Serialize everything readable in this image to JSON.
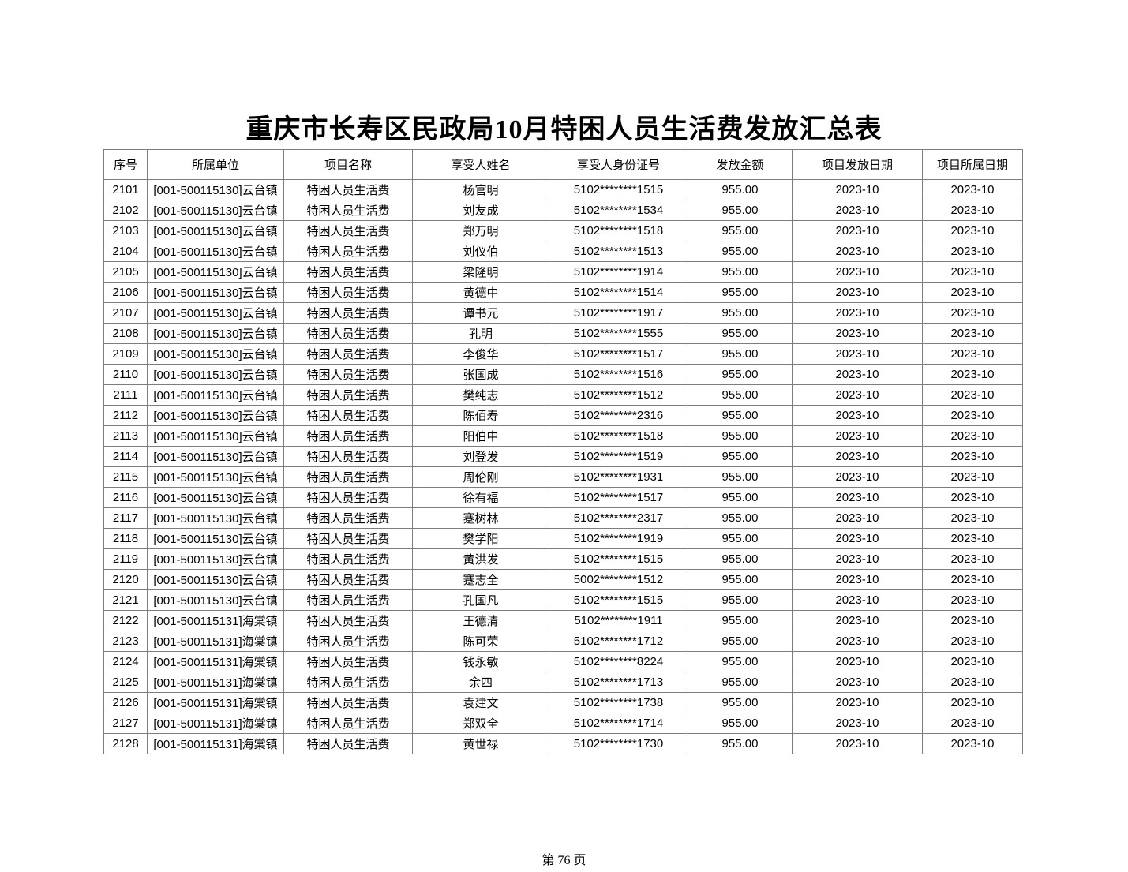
{
  "title": "重庆市长寿区民政局10月特困人员生活费发放汇总表",
  "footer": "第 76 页",
  "colors": {
    "background": "#ffffff",
    "text": "#000000",
    "table_border": "#7d7d7d"
  },
  "table": {
    "columns": [
      {
        "key": "serial",
        "label": "序号"
      },
      {
        "key": "unit",
        "label": "所属单位"
      },
      {
        "key": "project",
        "label": "项目名称"
      },
      {
        "key": "beneficiary",
        "label": "享受人姓名"
      },
      {
        "key": "id_number",
        "label": "享受人身份证号"
      },
      {
        "key": "amount",
        "label": "发放金额"
      },
      {
        "key": "issue_date",
        "label": "项目发放日期"
      },
      {
        "key": "period",
        "label": "项目所属日期"
      }
    ],
    "rows": [
      [
        "2101",
        "[001-500115130]云台镇",
        "特困人员生活费",
        "杨官明",
        "5102********1515",
        "955.00",
        "2023-10",
        "2023-10"
      ],
      [
        "2102",
        "[001-500115130]云台镇",
        "特困人员生活费",
        "刘友成",
        "5102********1534",
        "955.00",
        "2023-10",
        "2023-10"
      ],
      [
        "2103",
        "[001-500115130]云台镇",
        "特困人员生活费",
        "郑万明",
        "5102********1518",
        "955.00",
        "2023-10",
        "2023-10"
      ],
      [
        "2104",
        "[001-500115130]云台镇",
        "特困人员生活费",
        "刘仪伯",
        "5102********1513",
        "955.00",
        "2023-10",
        "2023-10"
      ],
      [
        "2105",
        "[001-500115130]云台镇",
        "特困人员生活费",
        "梁隆明",
        "5102********1914",
        "955.00",
        "2023-10",
        "2023-10"
      ],
      [
        "2106",
        "[001-500115130]云台镇",
        "特困人员生活费",
        "黄德中",
        "5102********1514",
        "955.00",
        "2023-10",
        "2023-10"
      ],
      [
        "2107",
        "[001-500115130]云台镇",
        "特困人员生活费",
        "谭书元",
        "5102********1917",
        "955.00",
        "2023-10",
        "2023-10"
      ],
      [
        "2108",
        "[001-500115130]云台镇",
        "特困人员生活费",
        "孔明",
        "5102********1555",
        "955.00",
        "2023-10",
        "2023-10"
      ],
      [
        "2109",
        "[001-500115130]云台镇",
        "特困人员生活费",
        "李俊华",
        "5102********1517",
        "955.00",
        "2023-10",
        "2023-10"
      ],
      [
        "2110",
        "[001-500115130]云台镇",
        "特困人员生活费",
        "张国成",
        "5102********1516",
        "955.00",
        "2023-10",
        "2023-10"
      ],
      [
        "2111",
        "[001-500115130]云台镇",
        "特困人员生活费",
        "樊纯志",
        "5102********1512",
        "955.00",
        "2023-10",
        "2023-10"
      ],
      [
        "2112",
        "[001-500115130]云台镇",
        "特困人员生活费",
        "陈佰寿",
        "5102********2316",
        "955.00",
        "2023-10",
        "2023-10"
      ],
      [
        "2113",
        "[001-500115130]云台镇",
        "特困人员生活费",
        "阳伯中",
        "5102********1518",
        "955.00",
        "2023-10",
        "2023-10"
      ],
      [
        "2114",
        "[001-500115130]云台镇",
        "特困人员生活费",
        "刘登发",
        "5102********1519",
        "955.00",
        "2023-10",
        "2023-10"
      ],
      [
        "2115",
        "[001-500115130]云台镇",
        "特困人员生活费",
        "周伦刚",
        "5102********1931",
        "955.00",
        "2023-10",
        "2023-10"
      ],
      [
        "2116",
        "[001-500115130]云台镇",
        "特困人员生活费",
        "徐有福",
        "5102********1517",
        "955.00",
        "2023-10",
        "2023-10"
      ],
      [
        "2117",
        "[001-500115130]云台镇",
        "特困人员生活费",
        "蹇树林",
        "5102********2317",
        "955.00",
        "2023-10",
        "2023-10"
      ],
      [
        "2118",
        "[001-500115130]云台镇",
        "特困人员生活费",
        "樊学阳",
        "5102********1919",
        "955.00",
        "2023-10",
        "2023-10"
      ],
      [
        "2119",
        "[001-500115130]云台镇",
        "特困人员生活费",
        "黄洪发",
        "5102********1515",
        "955.00",
        "2023-10",
        "2023-10"
      ],
      [
        "2120",
        "[001-500115130]云台镇",
        "特困人员生活费",
        "蹇志全",
        "5002********1512",
        "955.00",
        "2023-10",
        "2023-10"
      ],
      [
        "2121",
        "[001-500115130]云台镇",
        "特困人员生活费",
        "孔国凡",
        "5102********1515",
        "955.00",
        "2023-10",
        "2023-10"
      ],
      [
        "2122",
        "[001-500115131]海棠镇",
        "特困人员生活费",
        "王德清",
        "5102********1911",
        "955.00",
        "2023-10",
        "2023-10"
      ],
      [
        "2123",
        "[001-500115131]海棠镇",
        "特困人员生活费",
        "陈可荣",
        "5102********1712",
        "955.00",
        "2023-10",
        "2023-10"
      ],
      [
        "2124",
        "[001-500115131]海棠镇",
        "特困人员生活费",
        "钱永敏",
        "5102********8224",
        "955.00",
        "2023-10",
        "2023-10"
      ],
      [
        "2125",
        "[001-500115131]海棠镇",
        "特困人员生活费",
        "余四",
        "5102********1713",
        "955.00",
        "2023-10",
        "2023-10"
      ],
      [
        "2126",
        "[001-500115131]海棠镇",
        "特困人员生活费",
        "袁建文",
        "5102********1738",
        "955.00",
        "2023-10",
        "2023-10"
      ],
      [
        "2127",
        "[001-500115131]海棠镇",
        "特困人员生活费",
        "郑双全",
        "5102********1714",
        "955.00",
        "2023-10",
        "2023-10"
      ],
      [
        "2128",
        "[001-500115131]海棠镇",
        "特困人员生活费",
        "黄世禄",
        "5102********1730",
        "955.00",
        "2023-10",
        "2023-10"
      ]
    ]
  }
}
